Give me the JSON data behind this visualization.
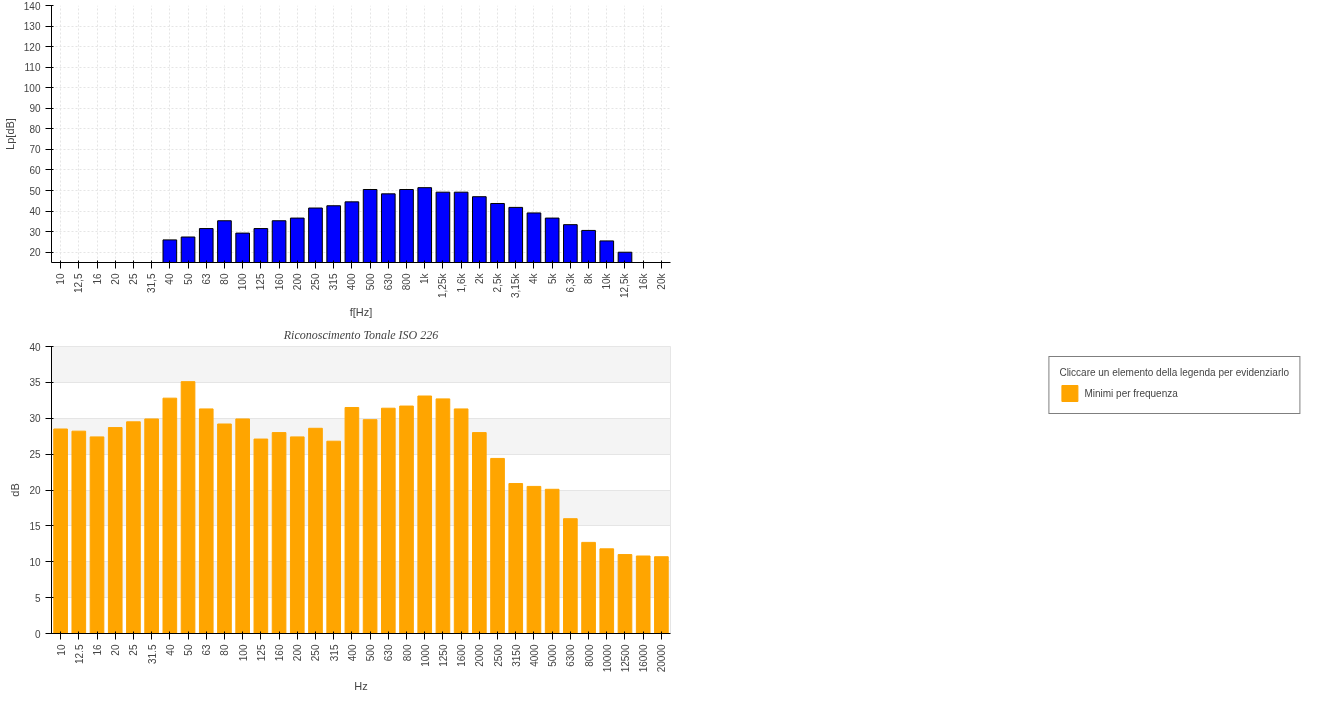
{
  "chart_data": [
    {
      "type": "bar",
      "xlabel": "f[Hz]",
      "ylabel": "Lp[dB]",
      "categories": [
        "10",
        "12,5",
        "16",
        "20",
        "25",
        "31,5",
        "40",
        "50",
        "63",
        "80",
        "100",
        "125",
        "160",
        "200",
        "250",
        "315",
        "400",
        "500",
        "630",
        "800",
        "1k",
        "1,25k",
        "1,6k",
        "2k",
        "2,5k",
        "3,15k",
        "4k",
        "5k",
        "6,3k",
        "8k",
        "10k",
        "12,5k",
        "16k",
        "20k"
      ],
      "series": [
        {
          "color": "#0000ff",
          "values": [
            null,
            null,
            null,
            null,
            null,
            null,
            26,
            27.4,
            31.5,
            35.3,
            29.3,
            31.5,
            35.3,
            36.6,
            41.5,
            42.6,
            44.5,
            50.5,
            48.4,
            50.5,
            51.4,
            49.2,
            49.2,
            47,
            43.7,
            41.8,
            39.1,
            36.6,
            33.4,
            30.6,
            25.5,
            20,
            null,
            null
          ]
        }
      ],
      "ylim": [
        15,
        140
      ],
      "yticks": [
        20,
        30,
        40,
        50,
        60,
        70,
        80,
        90,
        100,
        110,
        120,
        130,
        140
      ],
      "grid": true,
      "legend": false
    },
    {
      "type": "bar",
      "title": "Riconoscimento Tonale ISO 226",
      "xlabel": "Hz",
      "ylabel": "dB",
      "legend_title": "Cliccare un elemento della legenda per evidenziarlo",
      "categories": [
        "10",
        "12.5",
        "16",
        "20",
        "25",
        "31.5",
        "40",
        "50",
        "63",
        "80",
        "100",
        "125",
        "160",
        "200",
        "250",
        "315",
        "400",
        "500",
        "630",
        "800",
        "1000",
        "1250",
        "1600",
        "2000",
        "2500",
        "3150",
        "4000",
        "5000",
        "6300",
        "8000",
        "10000",
        "12500",
        "16000",
        "20000"
      ],
      "series": [
        {
          "name": "Minimi per frequenza",
          "color": "#ffa500",
          "values": [
            28.5,
            28.2,
            27.4,
            28.7,
            29.5,
            29.9,
            32.8,
            35.1,
            31.3,
            29.2,
            29.9,
            27.1,
            28.0,
            27.4,
            28.6,
            26.8,
            31.5,
            29.8,
            31.4,
            31.7,
            33.1,
            32.7,
            31.3,
            28.0,
            24.4,
            20.9,
            20.5,
            20.1,
            16.0,
            12.7,
            11.8,
            11.0,
            10.8,
            10.7
          ]
        }
      ],
      "ylim": [
        0,
        40
      ],
      "yticks": [
        0,
        5,
        10,
        15,
        20,
        25,
        30,
        35,
        40
      ],
      "grid": "y",
      "legend": "right"
    }
  ]
}
